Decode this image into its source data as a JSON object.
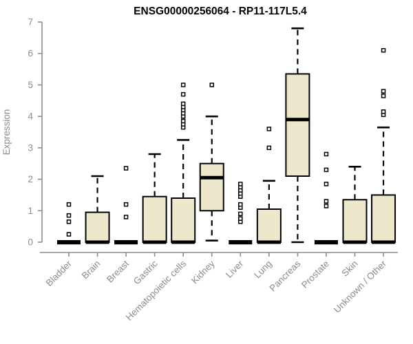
{
  "chart_data": {
    "type": "boxplot",
    "title": "ENSG00000256064 - RP11-117L5.4",
    "ylabel": "Expression",
    "xlabel": "",
    "ylim": [
      0,
      7
    ],
    "yticks": [
      0,
      1,
      2,
      3,
      4,
      5,
      6,
      7
    ],
    "grid": false,
    "legend": "none",
    "colors": {
      "box_fill": "#EDE7CB",
      "box_border": "#000000",
      "median": "#000000",
      "whisker": "#000000",
      "outlier_fill": "#FFFFFF",
      "axis": "#8C8C8C",
      "title": "#000000",
      "background": "#FFFFFF"
    },
    "categories": [
      "Bladder",
      "Brain",
      "Breast",
      "Gastric",
      "Hematopoietic cells",
      "Kidney",
      "Liver",
      "Lung",
      "Pancreas",
      "Prostate",
      "Skin",
      "Unknown / Other"
    ],
    "series": [
      {
        "category": "Bladder",
        "low": 0,
        "q1": 0,
        "median": 0,
        "q3": 0,
        "high": 0,
        "outliers": [
          0.25,
          0.65,
          0.85,
          1.2
        ]
      },
      {
        "category": "Brain",
        "low": 0,
        "q1": 0,
        "median": 0,
        "q3": 0.95,
        "high": 2.1,
        "outliers": []
      },
      {
        "category": "Breast",
        "low": 0,
        "q1": 0,
        "median": 0,
        "q3": 0,
        "high": 0,
        "outliers": [
          0.8,
          1.2,
          2.35
        ]
      },
      {
        "category": "Gastric",
        "low": 0,
        "q1": 0,
        "median": 0,
        "q3": 1.45,
        "high": 2.8,
        "outliers": []
      },
      {
        "category": "Hematopoietic cells",
        "low": 0,
        "q1": 0,
        "median": 0,
        "q3": 1.4,
        "high": 3.25,
        "outliers": [
          3.65,
          3.75,
          3.85,
          4.0,
          4.1,
          4.2,
          4.3,
          4.4,
          4.7,
          5.0
        ]
      },
      {
        "category": "Kidney",
        "low": 0.05,
        "q1": 1.0,
        "median": 2.05,
        "q3": 2.5,
        "high": 4.0,
        "outliers": [
          5.0
        ]
      },
      {
        "category": "Liver",
        "low": 0,
        "q1": 0,
        "median": 0,
        "q3": 0,
        "high": 0,
        "outliers": [
          0.65,
          0.75,
          0.9,
          1.1,
          1.2,
          1.45,
          1.55,
          1.65,
          1.75,
          1.85
        ]
      },
      {
        "category": "Lung",
        "low": 0,
        "q1": 0,
        "median": 0,
        "q3": 1.05,
        "high": 1.95,
        "outliers": [
          3.0,
          3.6
        ]
      },
      {
        "category": "Pancreas",
        "low": 0,
        "q1": 2.1,
        "median": 3.9,
        "q3": 5.35,
        "high": 6.8,
        "outliers": []
      },
      {
        "category": "Prostate",
        "low": 0,
        "q1": 0,
        "median": 0,
        "q3": 0,
        "high": 0,
        "outliers": [
          1.15,
          1.3,
          1.85,
          2.3,
          2.8
        ]
      },
      {
        "category": "Skin",
        "low": 0,
        "q1": 0,
        "median": 0,
        "q3": 1.35,
        "high": 2.4,
        "outliers": []
      },
      {
        "category": "Unknown / Other",
        "low": 0,
        "q1": 0,
        "median": 0,
        "q3": 1.5,
        "high": 3.65,
        "outliers": [
          4.05,
          4.15,
          4.65,
          4.8,
          6.1
        ]
      }
    ]
  }
}
